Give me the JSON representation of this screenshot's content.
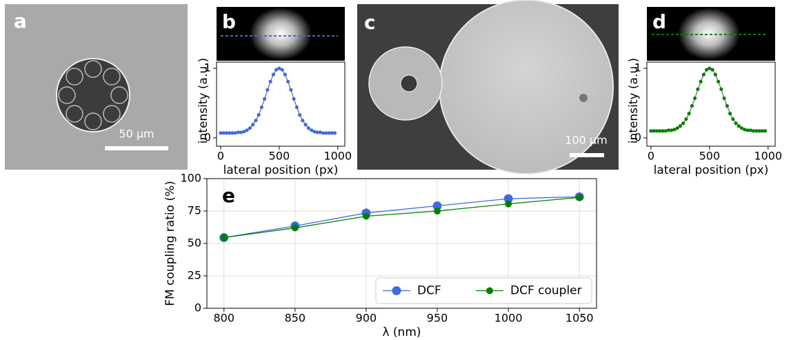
{
  "images": [
    {
      "panel_label": "a",
      "scale_bar": "50 μm"
    },
    {
      "panel_label": "c",
      "scale_bar": "100 μm"
    }
  ],
  "chart_data": [
    {
      "type": "scatter",
      "panel_label": "b",
      "xlabel": "lateral position (px)",
      "ylabel": "intensity (a.u.)",
      "x": [
        0,
        25,
        50,
        75,
        100,
        125,
        150,
        175,
        200,
        225,
        250,
        275,
        300,
        325,
        350,
        375,
        400,
        425,
        450,
        475,
        500,
        525,
        550,
        575,
        600,
        625,
        650,
        675,
        700,
        725,
        750,
        775,
        800,
        825,
        850,
        875,
        900,
        925,
        950,
        975
      ],
      "series": [
        {
          "color": "#4169e1",
          "fit_color": "#808080",
          "values": [
            0.07,
            0.07,
            0.07,
            0.07,
            0.07,
            0.07,
            0.08,
            0.08,
            0.09,
            0.11,
            0.14,
            0.19,
            0.25,
            0.33,
            0.44,
            0.56,
            0.69,
            0.81,
            0.91,
            0.98,
            1.0,
            0.98,
            0.91,
            0.81,
            0.69,
            0.56,
            0.44,
            0.33,
            0.25,
            0.19,
            0.14,
            0.11,
            0.09,
            0.08,
            0.08,
            0.07,
            0.07,
            0.07,
            0.07,
            0.07
          ]
        }
      ],
      "xlim": [
        -35,
        1060
      ],
      "xticks": [
        0,
        500,
        1000
      ],
      "ylim": [
        -0.12,
        1.09
      ],
      "yticks": [
        0,
        1
      ]
    },
    {
      "type": "scatter",
      "panel_label": "d",
      "xlabel": "lateral position (px)",
      "ylabel": "intensity (a.u.)",
      "x": [
        0,
        25,
        50,
        75,
        100,
        125,
        150,
        175,
        200,
        225,
        250,
        275,
        300,
        325,
        350,
        375,
        400,
        425,
        450,
        475,
        500,
        525,
        550,
        575,
        600,
        625,
        650,
        675,
        700,
        725,
        750,
        775,
        800,
        825,
        850,
        875,
        900,
        925,
        950,
        975
      ],
      "series": [
        {
          "color": "#008000",
          "fit_color": "#808080",
          "values": [
            0.1,
            0.1,
            0.1,
            0.1,
            0.1,
            0.1,
            0.11,
            0.11,
            0.12,
            0.14,
            0.17,
            0.21,
            0.27,
            0.35,
            0.46,
            0.57,
            0.7,
            0.81,
            0.91,
            0.98,
            1.0,
            0.98,
            0.91,
            0.81,
            0.7,
            0.57,
            0.46,
            0.35,
            0.27,
            0.21,
            0.17,
            0.14,
            0.12,
            0.11,
            0.11,
            0.1,
            0.1,
            0.1,
            0.1,
            0.1
          ]
        }
      ],
      "xlim": [
        -35,
        1060
      ],
      "xticks": [
        0,
        500,
        1000
      ],
      "ylim": [
        -0.12,
        1.09
      ],
      "yticks": [
        0,
        1
      ]
    },
    {
      "type": "line",
      "panel_label": "e",
      "xlabel": "λ (nm)",
      "ylabel": "FM coupling ratio (%)",
      "x": [
        800,
        850,
        900,
        950,
        1000,
        1050
      ],
      "series": [
        {
          "name": "DCF",
          "color": "#4169e1",
          "marker_size": 6.5,
          "values": [
            54.5,
            63.5,
            73.5,
            79,
            84.5,
            86
          ]
        },
        {
          "name": "DCF coupler",
          "color": "#008000",
          "marker_size": 5,
          "values": [
            54.5,
            62,
            71,
            75,
            80.5,
            85.5
          ]
        }
      ],
      "xlim": [
        788,
        1062
      ],
      "xticks": [
        800,
        850,
        900,
        950,
        1000,
        1050
      ],
      "ylim": [
        0,
        100
      ],
      "yticks": [
        0,
        25,
        50,
        75,
        100
      ],
      "grid": true,
      "legend": "lower right"
    }
  ]
}
